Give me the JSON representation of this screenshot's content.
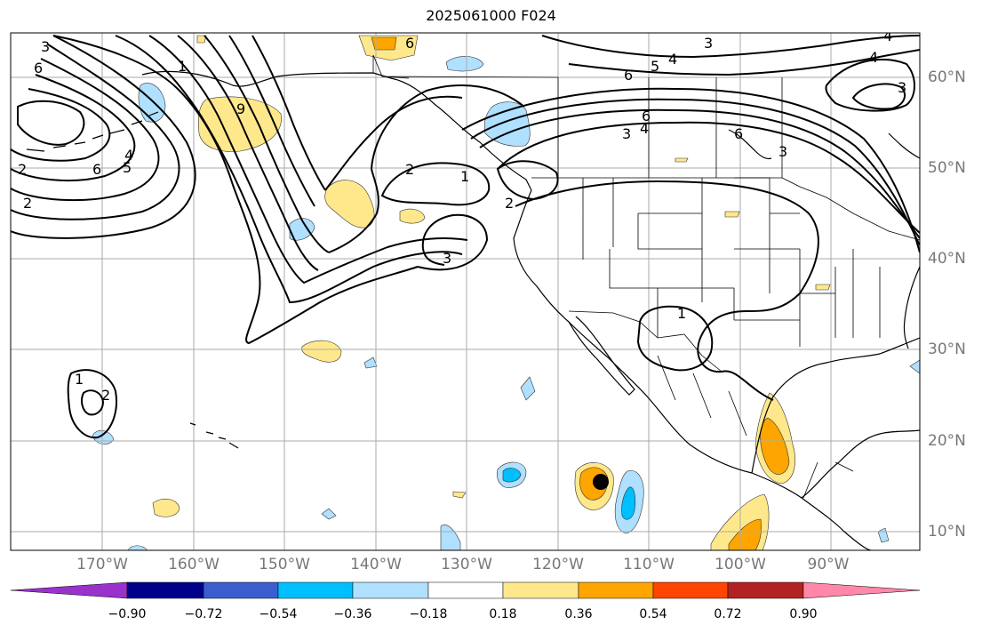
{
  "title": "2025061000 F024",
  "lon_labels": [
    "170°W",
    "160°W",
    "150°W",
    "140°W",
    "130°W",
    "120°W",
    "110°W",
    "100°W",
    "90°W"
  ],
  "lat_labels": [
    "60°N",
    "50°N",
    "40°N",
    "30°N",
    "20°N",
    "10°N"
  ],
  "colorbar": {
    "ticks": [
      "−0.90",
      "−0.72",
      "−0.54",
      "−0.36",
      "−0.18",
      "0.18",
      "0.36",
      "0.54",
      "0.72",
      "0.90"
    ],
    "colors": [
      "#9932cc",
      "#00008b",
      "#3a5fcd",
      "#00bfff",
      "#b0e0ff",
      "#ffffff",
      "#ffe88c",
      "#ffa500",
      "#ff4500",
      "#b22222",
      "#ff88aa"
    ]
  },
  "contour_labels": [
    "3",
    "6",
    "6",
    "4",
    "5",
    "6",
    "4",
    "3",
    "6",
    "4",
    "3",
    "1",
    "9",
    "6",
    "4",
    "5",
    "2",
    "2",
    "1",
    "2",
    "3",
    "1",
    "1",
    "2",
    "6",
    "4",
    "3",
    "2",
    "3"
  ],
  "fill_colors": {
    "yellow": "#ffe88c",
    "orange": "#ffa500",
    "lightblue": "#b0e0ff",
    "blue": "#00bfff"
  },
  "marker_color": "#000000"
}
